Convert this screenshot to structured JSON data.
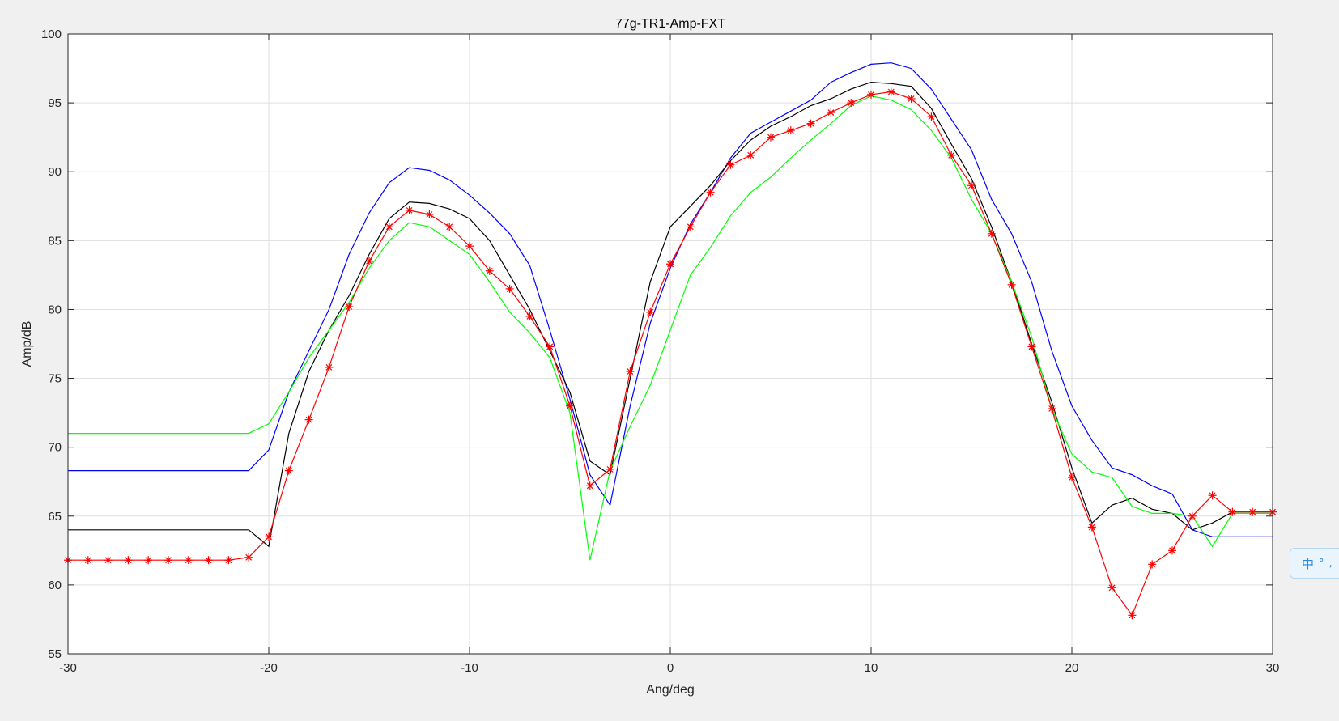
{
  "chart_data": {
    "type": "line",
    "title": "77g-TR1-Amp-FXT",
    "xlabel": "Ang/deg",
    "ylabel": "Amp/dB",
    "xlim": [
      -30,
      30
    ],
    "ylim": [
      55,
      100
    ],
    "xticks": [
      -30,
      -20,
      -10,
      0,
      10,
      20,
      30
    ],
    "yticks": [
      55,
      60,
      65,
      70,
      75,
      80,
      85,
      90,
      95,
      100
    ],
    "grid": true,
    "legend": "none",
    "series": [
      {
        "color": "#0000ff",
        "marker": "none",
        "x": [
          -30,
          -21,
          -20,
          -19,
          -18,
          -17,
          -16,
          -15,
          -14,
          -13,
          -12,
          -11,
          -10,
          -9,
          -8,
          -7,
          -6,
          -5,
          -4,
          -3,
          -2,
          -1,
          0,
          1,
          2,
          3,
          4,
          5,
          6,
          7,
          8,
          9,
          10,
          11,
          12,
          13,
          14,
          15,
          16,
          17,
          18,
          19,
          20,
          21,
          22,
          23,
          24,
          25,
          26,
          27,
          28,
          30
        ],
        "y": [
          68.3,
          68.3,
          69.8,
          74.0,
          77.0,
          80.0,
          84.0,
          87.0,
          89.2,
          90.3,
          90.1,
          89.4,
          88.3,
          87.0,
          85.5,
          83.2,
          78.5,
          73.5,
          68.0,
          65.8,
          73.0,
          79.0,
          83.0,
          86.2,
          88.5,
          91.0,
          92.8,
          93.6,
          94.4,
          95.2,
          96.5,
          97.2,
          97.8,
          97.9,
          97.5,
          96.0,
          93.8,
          91.6,
          88.0,
          85.5,
          82.0,
          77.0,
          73.0,
          70.5,
          68.5,
          68.0,
          67.2,
          66.6,
          64.0,
          63.5,
          63.5,
          63.5
        ]
      },
      {
        "color": "#000000",
        "marker": "none",
        "x": [
          -30,
          -21,
          -20,
          -19,
          -18,
          -17,
          -16,
          -15,
          -14,
          -13,
          -12,
          -11,
          -10,
          -9,
          -8,
          -7,
          -6,
          -5,
          -4,
          -3,
          -2,
          -1,
          0,
          1,
          2,
          3,
          4,
          5,
          6,
          7,
          8,
          9,
          10,
          11,
          12,
          13,
          14,
          15,
          16,
          17,
          18,
          19,
          20,
          21,
          22,
          23,
          24,
          25,
          26,
          27,
          28,
          30
        ],
        "y": [
          64.0,
          64.0,
          62.8,
          71.0,
          75.5,
          78.5,
          81.0,
          84.0,
          86.6,
          87.8,
          87.7,
          87.3,
          86.6,
          85.0,
          82.5,
          80.0,
          77.0,
          74.0,
          69.0,
          68.0,
          75.0,
          82.0,
          86.0,
          87.5,
          89.0,
          90.8,
          92.3,
          93.3,
          94.0,
          94.8,
          95.3,
          96.0,
          96.5,
          96.4,
          96.2,
          94.6,
          92.0,
          89.5,
          86.0,
          82.0,
          77.5,
          73.3,
          68.5,
          64.5,
          65.8,
          66.3,
          65.5,
          65.2,
          64.0,
          64.5,
          65.3,
          65.3
        ]
      },
      {
        "color": "#00ff00",
        "marker": "none",
        "x": [
          -30,
          -21,
          -20,
          -19,
          -18,
          -17,
          -16,
          -15,
          -14,
          -13,
          -12,
          -11,
          -10,
          -9,
          -8,
          -7,
          -6,
          -5,
          -4,
          -3,
          -2,
          -1,
          0,
          1,
          2,
          3,
          4,
          5,
          6,
          7,
          8,
          9,
          10,
          11,
          12,
          13,
          14,
          15,
          16,
          17,
          18,
          19,
          20,
          21,
          22,
          23,
          24,
          25,
          26,
          27,
          28,
          30
        ],
        "y": [
          71.0,
          71.0,
          71.7,
          74.0,
          76.5,
          78.5,
          80.5,
          83.0,
          85.0,
          86.3,
          86.0,
          85.0,
          84.0,
          82.0,
          79.8,
          78.3,
          76.5,
          72.5,
          61.8,
          68.3,
          71.5,
          74.5,
          78.5,
          82.5,
          84.5,
          86.8,
          88.5,
          89.6,
          91.0,
          92.3,
          93.5,
          94.8,
          95.5,
          95.2,
          94.5,
          93.0,
          91.0,
          88.0,
          85.5,
          82.0,
          78.0,
          72.8,
          69.5,
          68.2,
          67.8,
          65.7,
          65.2,
          65.2,
          65.0,
          62.8,
          65.2,
          65.2
        ]
      },
      {
        "color": "#ff0000",
        "marker": "asterisk",
        "x": [
          -30,
          -29,
          -28,
          -27,
          -26,
          -25,
          -24,
          -23,
          -22,
          -21,
          -20,
          -19,
          -18,
          -17,
          -16,
          -15,
          -14,
          -13,
          -12,
          -11,
          -10,
          -9,
          -8,
          -7,
          -6,
          -5,
          -4,
          -3,
          -2,
          -1,
          0,
          1,
          2,
          3,
          4,
          5,
          6,
          7,
          8,
          9,
          10,
          11,
          12,
          13,
          14,
          15,
          16,
          17,
          18,
          19,
          20,
          21,
          22,
          23,
          24,
          25,
          26,
          27,
          28,
          29,
          30
        ],
        "y": [
          61.8,
          61.8,
          61.8,
          61.8,
          61.8,
          61.8,
          61.8,
          61.8,
          61.8,
          62.0,
          63.5,
          68.3,
          72.0,
          75.8,
          80.2,
          83.5,
          86.0,
          87.2,
          86.9,
          86.0,
          84.6,
          82.8,
          81.5,
          79.5,
          77.3,
          73.0,
          67.2,
          68.4,
          75.5,
          79.8,
          83.3,
          86.0,
          88.5,
          90.5,
          91.2,
          92.5,
          93.0,
          93.5,
          94.3,
          95.0,
          95.6,
          95.8,
          95.3,
          94.0,
          91.2,
          89.0,
          85.5,
          81.8,
          77.3,
          72.8,
          67.8,
          64.2,
          59.8,
          57.8,
          61.5,
          62.5,
          65.0,
          66.5,
          65.3,
          65.3,
          65.3
        ]
      }
    ]
  },
  "overlay": {
    "ime_char": "中",
    "ime_extra": "° ,"
  }
}
